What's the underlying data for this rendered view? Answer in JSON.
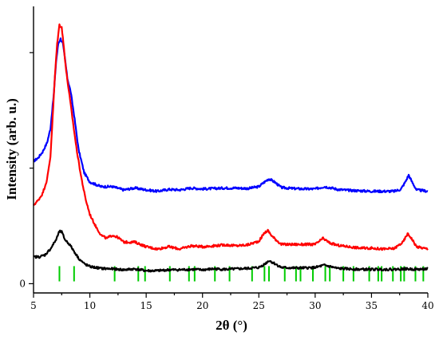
{
  "chart_data": {
    "type": "line",
    "title": "",
    "xlabel": "2θ (°)",
    "ylabel": "Intensity (arb. u.)",
    "xlim": [
      5,
      40
    ],
    "x_ticks": [
      5,
      10,
      15,
      20,
      25,
      30,
      35,
      40
    ],
    "x_tick_labels": [
      "5",
      "10",
      "15",
      "20",
      "25",
      "30",
      "35",
      "40"
    ],
    "ylim": [
      -0.2,
      6.0
    ],
    "y_ticks": [
      0
    ],
    "y_tick_labels": [
      "0"
    ],
    "grid": false,
    "legend": "none",
    "series": [
      {
        "color": "#0000ff",
        "points": [
          [
            5.0,
            2.65
          ],
          [
            5.4,
            2.72
          ],
          [
            5.8,
            2.85
          ],
          [
            6.2,
            3.05
          ],
          [
            6.5,
            3.35
          ],
          [
            6.8,
            4.1
          ],
          [
            7.0,
            4.8
          ],
          [
            7.2,
            5.2
          ],
          [
            7.4,
            5.3
          ],
          [
            7.6,
            5.2
          ],
          [
            7.8,
            4.85
          ],
          [
            8.0,
            4.45
          ],
          [
            8.3,
            4.15
          ],
          [
            8.6,
            3.65
          ],
          [
            9.0,
            2.9
          ],
          [
            9.5,
            2.4
          ],
          [
            10.0,
            2.2
          ],
          [
            11.0,
            2.1
          ],
          [
            12.0,
            2.1
          ],
          [
            13.0,
            2.03
          ],
          [
            14.0,
            2.07
          ],
          [
            15.0,
            2.03
          ],
          [
            16.0,
            2.0
          ],
          [
            17.0,
            2.04
          ],
          [
            18.0,
            2.03
          ],
          [
            19.0,
            2.07
          ],
          [
            20.0,
            2.05
          ],
          [
            21.0,
            2.06
          ],
          [
            22.0,
            2.07
          ],
          [
            23.0,
            2.07
          ],
          [
            24.0,
            2.06
          ],
          [
            25.0,
            2.1
          ],
          [
            25.5,
            2.2
          ],
          [
            25.9,
            2.27
          ],
          [
            26.4,
            2.2
          ],
          [
            27.0,
            2.08
          ],
          [
            28.0,
            2.06
          ],
          [
            29.0,
            2.05
          ],
          [
            30.0,
            2.05
          ],
          [
            30.8,
            2.1
          ],
          [
            31.5,
            2.07
          ],
          [
            32.0,
            2.04
          ],
          [
            33.0,
            2.02
          ],
          [
            34.0,
            2.01
          ],
          [
            35.0,
            2.0
          ],
          [
            36.0,
            2.0
          ],
          [
            37.0,
            2.0
          ],
          [
            37.6,
            2.04
          ],
          [
            38.0,
            2.2
          ],
          [
            38.3,
            2.35
          ],
          [
            38.6,
            2.2
          ],
          [
            39.0,
            2.03
          ],
          [
            40.0,
            2.0
          ]
        ]
      },
      {
        "color": "#ff0000",
        "points": [
          [
            5.0,
            1.7
          ],
          [
            5.4,
            1.8
          ],
          [
            5.8,
            1.95
          ],
          [
            6.2,
            2.25
          ],
          [
            6.5,
            2.75
          ],
          [
            6.7,
            3.6
          ],
          [
            6.9,
            4.5
          ],
          [
            7.1,
            5.2
          ],
          [
            7.3,
            5.6
          ],
          [
            7.5,
            5.55
          ],
          [
            7.7,
            5.1
          ],
          [
            7.9,
            4.6
          ],
          [
            8.2,
            4.05
          ],
          [
            8.5,
            3.5
          ],
          [
            8.8,
            2.95
          ],
          [
            9.2,
            2.35
          ],
          [
            9.6,
            1.85
          ],
          [
            10.0,
            1.5
          ],
          [
            10.5,
            1.25
          ],
          [
            11.0,
            1.05
          ],
          [
            11.5,
            0.98
          ],
          [
            12.0,
            1.05
          ],
          [
            12.5,
            1.0
          ],
          [
            13.0,
            0.9
          ],
          [
            14.0,
            0.9
          ],
          [
            14.5,
            0.85
          ],
          [
            15.0,
            0.8
          ],
          [
            16.0,
            0.75
          ],
          [
            17.0,
            0.8
          ],
          [
            18.0,
            0.75
          ],
          [
            19.0,
            0.82
          ],
          [
            20.0,
            0.8
          ],
          [
            21.0,
            0.82
          ],
          [
            22.0,
            0.84
          ],
          [
            23.0,
            0.82
          ],
          [
            24.0,
            0.84
          ],
          [
            25.0,
            0.92
          ],
          [
            25.5,
            1.1
          ],
          [
            25.8,
            1.15
          ],
          [
            26.2,
            1.02
          ],
          [
            27.0,
            0.85
          ],
          [
            28.0,
            0.85
          ],
          [
            29.0,
            0.85
          ],
          [
            30.0,
            0.85
          ],
          [
            30.7,
            0.98
          ],
          [
            31.3,
            0.88
          ],
          [
            32.0,
            0.83
          ],
          [
            33.0,
            0.8
          ],
          [
            34.0,
            0.77
          ],
          [
            35.0,
            0.77
          ],
          [
            36.0,
            0.75
          ],
          [
            37.0,
            0.76
          ],
          [
            37.8,
            0.9
          ],
          [
            38.2,
            1.08
          ],
          [
            38.5,
            1.0
          ],
          [
            39.0,
            0.8
          ],
          [
            40.0,
            0.75
          ]
        ]
      },
      {
        "color": "#000000",
        "points": [
          [
            5.0,
            0.58
          ],
          [
            5.5,
            0.58
          ],
          [
            6.0,
            0.62
          ],
          [
            6.5,
            0.75
          ],
          [
            7.0,
            0.95
          ],
          [
            7.3,
            1.13
          ],
          [
            7.5,
            1.12
          ],
          [
            7.8,
            0.95
          ],
          [
            8.2,
            0.85
          ],
          [
            8.6,
            0.7
          ],
          [
            9.0,
            0.55
          ],
          [
            9.5,
            0.43
          ],
          [
            10.0,
            0.37
          ],
          [
            11.0,
            0.33
          ],
          [
            12.0,
            0.32
          ],
          [
            13.0,
            0.3
          ],
          [
            14.0,
            0.32
          ],
          [
            15.0,
            0.28
          ],
          [
            16.0,
            0.28
          ],
          [
            17.0,
            0.3
          ],
          [
            18.0,
            0.3
          ],
          [
            19.0,
            0.31
          ],
          [
            20.0,
            0.3
          ],
          [
            21.0,
            0.32
          ],
          [
            22.0,
            0.31
          ],
          [
            23.0,
            0.32
          ],
          [
            24.0,
            0.33
          ],
          [
            25.0,
            0.35
          ],
          [
            25.5,
            0.42
          ],
          [
            25.9,
            0.5
          ],
          [
            26.3,
            0.45
          ],
          [
            27.0,
            0.35
          ],
          [
            28.0,
            0.34
          ],
          [
            29.0,
            0.34
          ],
          [
            30.0,
            0.35
          ],
          [
            30.8,
            0.4
          ],
          [
            31.5,
            0.36
          ],
          [
            32.0,
            0.33
          ],
          [
            33.0,
            0.32
          ],
          [
            34.0,
            0.31
          ],
          [
            35.0,
            0.31
          ],
          [
            36.0,
            0.31
          ],
          [
            37.0,
            0.31
          ],
          [
            38.0,
            0.32
          ],
          [
            39.0,
            0.31
          ],
          [
            40.0,
            0.32
          ]
        ]
      }
    ],
    "reference_lines": {
      "color": "#00cc00",
      "positions": [
        7.3,
        8.6,
        12.2,
        14.3,
        14.9,
        17.1,
        18.8,
        19.3,
        21.1,
        22.4,
        24.4,
        25.5,
        25.9,
        27.3,
        28.3,
        28.7,
        29.8,
        30.9,
        31.3,
        32.5,
        33.4,
        34.8,
        35.6,
        35.9,
        36.9,
        37.6,
        37.9,
        38.9,
        39.6
      ]
    }
  }
}
